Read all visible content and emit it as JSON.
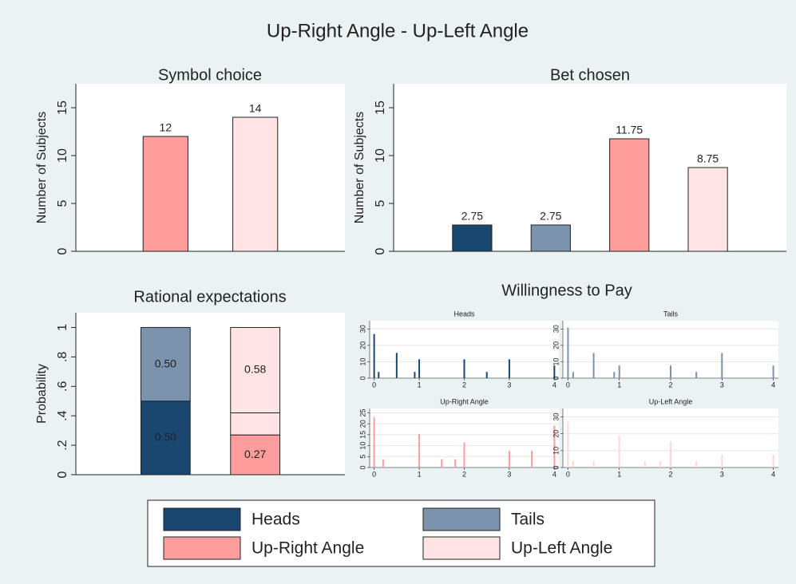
{
  "title": "Up-Right Angle - Up-Left Angle",
  "legend": [
    {
      "name": "Heads",
      "color": "#1a476f"
    },
    {
      "name": "Tails",
      "color": "#7b93ac"
    },
    {
      "name": "Up-Right Angle",
      "color": "#ff9c9c"
    },
    {
      "name": "Up-Left Angle",
      "color": "#ffe4e4"
    }
  ],
  "chart_data": [
    {
      "type": "bar",
      "title": "Symbol choice",
      "ylabel": "Number of Subjects",
      "categories": [
        null,
        null
      ],
      "values": [
        12,
        14
      ],
      "colors": [
        "#ff9c9c",
        "#ffe4e4"
      ],
      "ylim": [
        0,
        17.5
      ],
      "yticks": [
        0,
        5,
        10,
        15
      ],
      "grid": false
    },
    {
      "type": "bar",
      "title": "Bet chosen",
      "ylabel": "Number of Subjects",
      "categories": [
        null,
        null,
        null,
        null
      ],
      "values": [
        2.75,
        2.75,
        11.75,
        8.75
      ],
      "colors": [
        "#1a476f",
        "#7b93ac",
        "#ff9c9c",
        "#ffe4e4"
      ],
      "ylim": [
        0,
        17.5
      ],
      "yticks": [
        0,
        5,
        10,
        15
      ],
      "grid": false
    },
    {
      "type": "stacked-bar",
      "title": "Rational expectations",
      "ylabel": "Probability",
      "categories": [
        null,
        null
      ],
      "series": [
        {
          "name": "Heads",
          "color": "#1a476f",
          "values": [
            0.5,
            null
          ],
          "value_labels": [
            "0.50",
            null
          ]
        },
        {
          "name": "Tails",
          "color": "#7b93ac",
          "values": [
            0.5,
            null
          ],
          "value_labels": [
            "0.50",
            null
          ]
        },
        {
          "name": "Up-Right Angle",
          "color": "#ff9c9c",
          "values": [
            null,
            0.27
          ],
          "value_labels": [
            null,
            "0.27"
          ]
        },
        {
          "color": "#ffe4e4",
          "values": [
            null,
            0.15
          ]
        },
        {
          "name": "Up-Left Angle",
          "color": "#ffe4e4",
          "values": [
            null,
            0.58
          ],
          "value_labels": [
            null,
            "0.58"
          ]
        }
      ],
      "ylim": [
        0,
        1.1
      ],
      "yticks": [
        0,
        {
          "value": 0.2,
          "label": ".2"
        },
        {
          "value": 0.4,
          "label": ".4"
        },
        {
          "value": 0.6,
          "label": ".6"
        },
        {
          "value": 0.8,
          "label": ".8"
        },
        1
      ],
      "grid": false
    },
    {
      "type": "spike-grid",
      "title": "Willingness to Pay",
      "panels": [
        {
          "title": "Heads",
          "color": "#1a476f",
          "x": [
            0,
            0.1,
            0.5,
            0.9,
            1,
            2,
            2.5,
            3,
            4
          ],
          "values": [
            26.9,
            3.8,
            15.4,
            3.8,
            11.5,
            11.5,
            3.8,
            11.5,
            7.7
          ],
          "xlim": [
            -0.1,
            4.1
          ],
          "xticks": [
            0,
            1,
            2,
            3,
            4
          ],
          "ylim": [
            0,
            35
          ],
          "yticks": [
            0,
            10,
            20,
            30
          ],
          "grid": true
        },
        {
          "title": "Tails",
          "color": "#7b93ac",
          "x": [
            0,
            0.1,
            0.5,
            0.9,
            1,
            2,
            2.5,
            3,
            4
          ],
          "values": [
            30.8,
            3.8,
            15.4,
            3.8,
            7.7,
            7.7,
            3.8,
            15.4,
            7.7
          ],
          "xlim": [
            -0.1,
            4.1
          ],
          "xticks": [
            0,
            1,
            2,
            3,
            4
          ],
          "ylim": [
            0,
            35
          ],
          "yticks": [
            0,
            10,
            20,
            30
          ],
          "grid": true
        },
        {
          "title": "Up-Right Angle",
          "color": "#ff9c9c",
          "x": [
            0,
            0.2,
            1,
            1.5,
            1.8,
            2,
            3,
            3.5,
            4
          ],
          "values": [
            23.1,
            3.8,
            15.4,
            3.8,
            3.8,
            11.5,
            7.7,
            7.7,
            19.2
          ],
          "xlim": [
            -0.1,
            4.1
          ],
          "xticks": [
            0,
            1,
            2,
            3,
            4
          ],
          "ylim": [
            0,
            27
          ],
          "yticks": [
            0,
            5,
            10,
            15,
            20,
            25
          ],
          "grid": true
        },
        {
          "title": "Up-Left Angle",
          "color": "#ffd6d6",
          "x": [
            0,
            0.1,
            0.5,
            1,
            1.5,
            1.8,
            2,
            2.5,
            3,
            4
          ],
          "values": [
            26.9,
            3.8,
            3.8,
            19.2,
            3.8,
            3.8,
            15.4,
            3.8,
            7.7,
            7.7
          ],
          "xlim": [
            -0.1,
            4.1
          ],
          "xticks": [
            0,
            1,
            2,
            3,
            4
          ],
          "ylim": [
            0,
            35
          ],
          "yticks": [
            0,
            10,
            20,
            30
          ],
          "grid": true
        }
      ]
    }
  ]
}
